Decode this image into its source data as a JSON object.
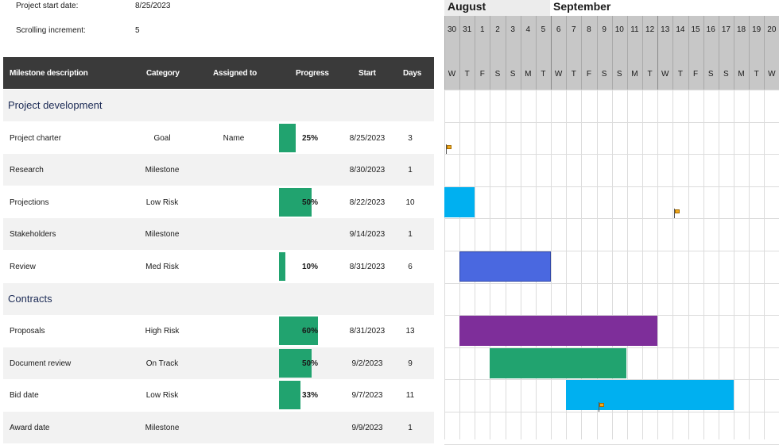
{
  "settings": {
    "start_label": "Project start date:",
    "start_value": "8/25/2023",
    "increment_label": "Scrolling increment:",
    "increment_value": "5"
  },
  "table": {
    "headers": [
      "Milestone description",
      "Category",
      "Assigned to",
      "Progress",
      "Start",
      "Days"
    ]
  },
  "groups": [
    {
      "title": "Project development",
      "rows": [
        {
          "desc": "Project charter",
          "cat": "Goal",
          "asg": "Name",
          "progress": "25%",
          "start": "8/25/2023",
          "days": "3"
        },
        {
          "desc": "Research",
          "cat": "Milestone",
          "asg": "",
          "progress": "",
          "start": "8/30/2023",
          "days": "1"
        },
        {
          "desc": "Projections",
          "cat": "Low Risk",
          "asg": "",
          "progress": "50%",
          "start": "8/22/2023",
          "days": "10"
        },
        {
          "desc": "Stakeholders",
          "cat": "Milestone",
          "asg": "",
          "progress": "",
          "start": "9/14/2023",
          "days": "1"
        },
        {
          "desc": "Review",
          "cat": "Med Risk",
          "asg": "",
          "progress": "10%",
          "start": "8/31/2023",
          "days": "6"
        }
      ]
    },
    {
      "title": "Contracts",
      "rows": [
        {
          "desc": "Proposals",
          "cat": "High Risk",
          "asg": "",
          "progress": "60%",
          "start": "8/31/2023",
          "days": "13"
        },
        {
          "desc": "Document review",
          "cat": "On Track",
          "asg": "",
          "progress": "50%",
          "start": "9/2/2023",
          "days": "9"
        },
        {
          "desc": "Bid date",
          "cat": "Low Risk",
          "asg": "",
          "progress": "33%",
          "start": "9/7/2023",
          "days": "11"
        },
        {
          "desc": "Award date",
          "cat": "Milestone",
          "asg": "",
          "progress": "",
          "start": "9/9/2023",
          "days": "1"
        }
      ]
    }
  ],
  "gantt": {
    "months": [
      "August",
      "September"
    ],
    "days": [
      "30",
      "31",
      "1",
      "2",
      "3",
      "4",
      "5",
      "6",
      "7",
      "8",
      "9",
      "10",
      "11",
      "12",
      "13",
      "14",
      "15",
      "16",
      "17",
      "18",
      "19",
      "20"
    ],
    "weekdays": [
      "W",
      "T",
      "F",
      "S",
      "S",
      "M",
      "T",
      "W",
      "T",
      "F",
      "S",
      "S",
      "M",
      "T",
      "W",
      "T",
      "F",
      "S",
      "S",
      "M",
      "T",
      "W"
    ],
    "category_colors": {
      "Low Risk": "#00b0f0",
      "Med Risk": "#4a68e0",
      "High Risk": "#7e2e9a",
      "On Track": "#21a36f",
      "Milestone": "#f0a81c"
    },
    "progress_color": "#21a36f"
  }
}
